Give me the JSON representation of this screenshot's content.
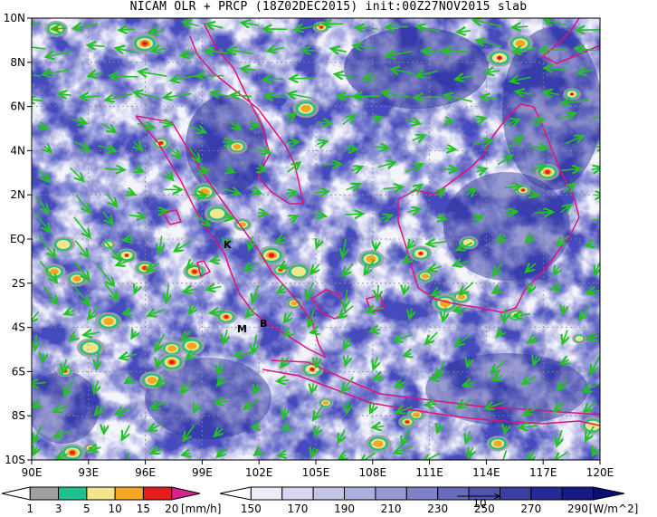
{
  "title": "NICAM OLR + PRCP (18Z02DEC2015) init:00Z27NOV2015 slab",
  "map": {
    "lat_labels": [
      "10N",
      "8N",
      "6N",
      "4N",
      "2N",
      "EQ",
      "2S",
      "4S",
      "6S",
      "8S",
      "10S"
    ],
    "lon_labels": [
      "90E",
      "93E",
      "96E",
      "99E",
      "102E",
      "105E",
      "108E",
      "111E",
      "114E",
      "117E",
      "120E"
    ],
    "extent": {
      "lon": [
        90,
        120
      ],
      "lat": [
        -10,
        10
      ]
    },
    "grid": "dotted",
    "station_labels": [
      "K",
      "M",
      "B"
    ],
    "vector_reference_label": "10",
    "colors": {
      "olr_dark": "#0d0f7a",
      "olr_mid": "#5a5fb4",
      "olr_light": "#c7c8ea",
      "coast": "#e0137a",
      "wind": "#22c222"
    }
  },
  "precip_colorbar": {
    "ticks": [
      "1",
      "3",
      "5",
      "10",
      "15",
      "20"
    ],
    "unit": "[mm/h]",
    "colors": [
      "#ffffff",
      "#a0a0a0",
      "#1fbf8f",
      "#f5e58a",
      "#f5a623",
      "#e61b1b",
      "#d6248f"
    ]
  },
  "olr_colorbar": {
    "ticks": [
      "150",
      "170",
      "190",
      "210",
      "230",
      "250",
      "270",
      "290"
    ],
    "unit": "[W/m^2]",
    "colors": [
      "#ffffff",
      "#ececf7",
      "#d7d8ef",
      "#c3c4e6",
      "#aeafdd",
      "#9799d3",
      "#8082c8",
      "#686bbd",
      "#5054b0",
      "#3a3ea3",
      "#262a96",
      "#151a87",
      "#0a0f78"
    ]
  }
}
